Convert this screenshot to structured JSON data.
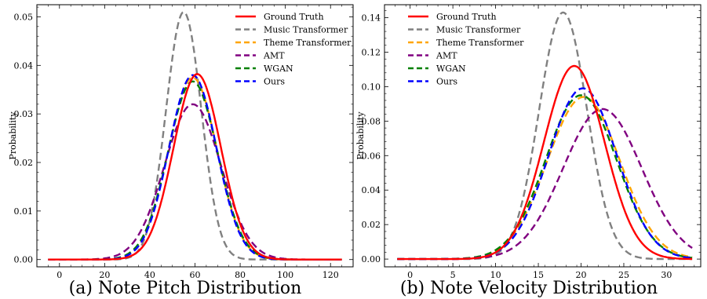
{
  "chart_data": [
    {
      "type": "line",
      "caption": "(a) Note Pitch Distribution",
      "xlabel": "",
      "ylabel": "Probability",
      "xlim": [
        -10,
        130
      ],
      "ylim": [
        -0.0015,
        0.0525
      ],
      "xticks": [
        0,
        20,
        40,
        60,
        80,
        100,
        120
      ],
      "yticks": [
        0.0,
        0.01,
        0.02,
        0.03,
        0.04,
        0.05
      ],
      "ytick_labels": [
        "0.00",
        "0.01",
        "0.02",
        "0.03",
        "0.04",
        "0.05"
      ],
      "x_range": [
        -5,
        125
      ],
      "legend": "top-right",
      "series": [
        {
          "name": "Ground Truth",
          "color": "#ff0000",
          "dash": "solid",
          "mean": 61,
          "std": 10.45,
          "peak": 0.0382
        },
        {
          "name": "Music Transformer",
          "color": "#808080",
          "dash": "dashed",
          "mean": 55,
          "std": 7.8,
          "peak": 0.051
        },
        {
          "name": "Theme Transformer",
          "color": "#ffa500",
          "dash": "dashed",
          "mean": 59,
          "std": 10.7,
          "peak": 0.0375
        },
        {
          "name": "AMT",
          "color": "#800080",
          "dash": "dashed",
          "mean": 59,
          "std": 12.5,
          "peak": 0.032
        },
        {
          "name": "WGAN",
          "color": "#008000",
          "dash": "dashed",
          "mean": 59,
          "std": 10.9,
          "peak": 0.0367
        },
        {
          "name": "Ours",
          "color": "#0000ff",
          "dash": "dashed",
          "mean": 59,
          "std": 10.5,
          "peak": 0.038
        }
      ]
    },
    {
      "type": "line",
      "caption": "(b) Note Velocity Distribution",
      "xlabel": "",
      "ylabel": "Probability",
      "xlim": [
        -3,
        34
      ],
      "ylim": [
        -0.0045,
        0.1475
      ],
      "xticks": [
        0,
        5,
        10,
        15,
        20,
        25,
        30
      ],
      "yticks": [
        0.0,
        0.02,
        0.04,
        0.06,
        0.08,
        0.1,
        0.12,
        0.14
      ],
      "ytick_labels": [
        "0.00",
        "0.02",
        "0.04",
        "0.06",
        "0.08",
        "0.10",
        "0.12",
        "0.14"
      ],
      "x_range": [
        -1.5,
        33
      ],
      "legend": "top-left",
      "series": [
        {
          "name": "Ground Truth",
          "color": "#ff0000",
          "dash": "solid",
          "mean": 19.2,
          "std": 3.55,
          "peak": 0.112
        },
        {
          "name": "Music Transformer",
          "color": "#808080",
          "dash": "dashed",
          "mean": 17.9,
          "std": 2.8,
          "peak": 0.143
        },
        {
          "name": "Theme Transformer",
          "color": "#ffa500",
          "dash": "dashed",
          "mean": 20.3,
          "std": 4.25,
          "peak": 0.094
        },
        {
          "name": "AMT",
          "color": "#800080",
          "dash": "dashed",
          "mean": 22.5,
          "std": 4.6,
          "peak": 0.087
        },
        {
          "name": "WGAN",
          "color": "#008000",
          "dash": "dashed",
          "mean": 20.0,
          "std": 4.15,
          "peak": 0.095
        },
        {
          "name": "Ours",
          "color": "#0000ff",
          "dash": "dashed",
          "mean": 20.2,
          "std": 4.0,
          "peak": 0.099
        }
      ]
    }
  ]
}
